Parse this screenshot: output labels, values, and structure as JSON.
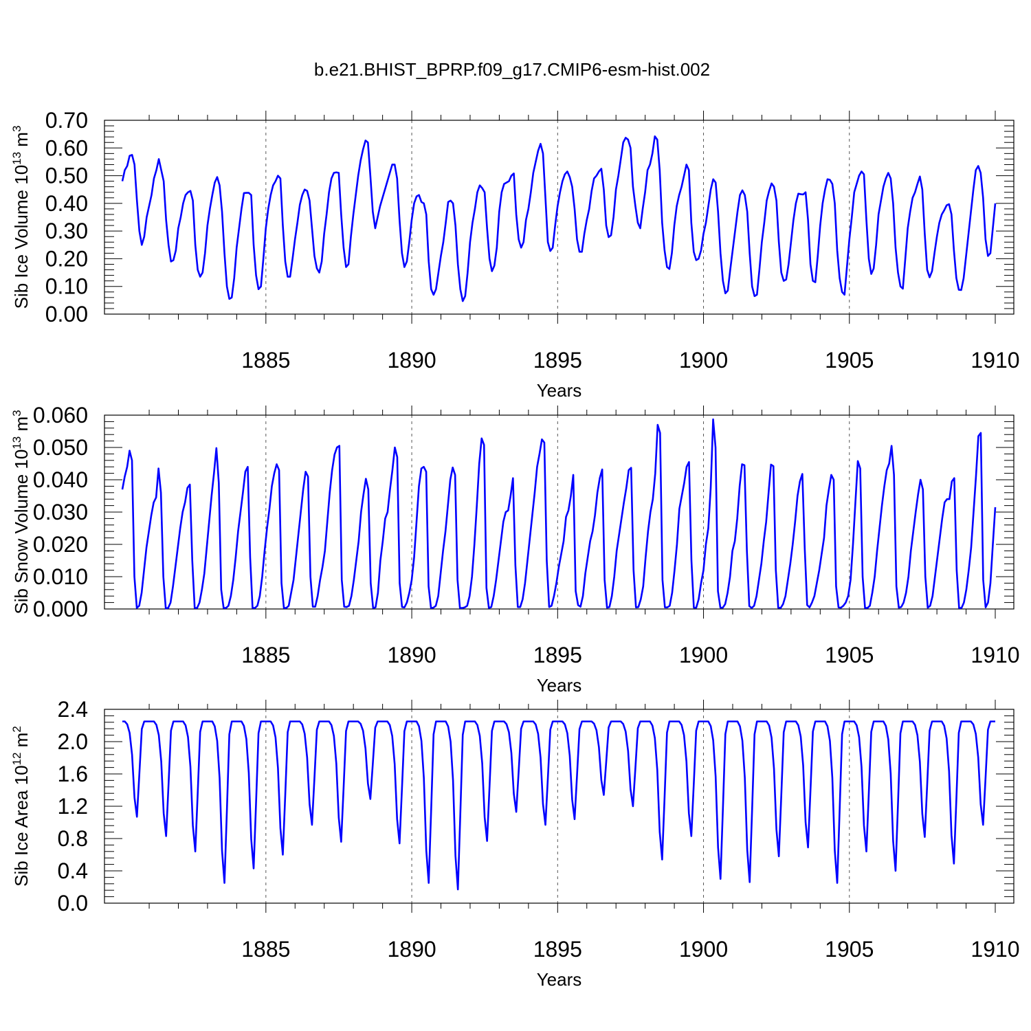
{
  "title": "b.e21.BHIST_BPRP.f09_g17.CMIP6-esm-hist.002",
  "colors": {
    "series": "#0000ff",
    "axis": "#000000",
    "grid": "#555555"
  },
  "chart_data": [
    {
      "type": "line",
      "id": "ice_volume",
      "ylabel_main": "Sib Ice Volume 10",
      "ylabel_exp": "13",
      "ylabel_unit": " m",
      "ylabel_unit_exp": "3",
      "xlabel": "Years",
      "xlim": [
        1880.08,
        1910.0
      ],
      "ylim": [
        0.0,
        0.7
      ],
      "xticks": [
        "1885",
        "1890",
        "1895",
        "1900",
        "1905",
        "1910"
      ],
      "yticks": [
        "0.00",
        "0.10",
        "0.20",
        "0.30",
        "0.40",
        "0.50",
        "0.60",
        "0.70"
      ],
      "grid_x": [
        1885,
        1890,
        1895,
        1900,
        1905
      ],
      "monthly_values": [
        0.48,
        0.52,
        0.535,
        0.572,
        0.575,
        0.54,
        0.41,
        0.3,
        0.25,
        0.28,
        0.35,
        0.39,
        0.43,
        0.49,
        0.52,
        0.56,
        0.52,
        0.48,
        0.34,
        0.25,
        0.19,
        0.195,
        0.23,
        0.31,
        0.35,
        0.4,
        0.43,
        0.44,
        0.445,
        0.41,
        0.25,
        0.16,
        0.135,
        0.15,
        0.22,
        0.32,
        0.38,
        0.43,
        0.475,
        0.495,
        0.465,
        0.37,
        0.22,
        0.1,
        0.055,
        0.06,
        0.13,
        0.24,
        0.31,
        0.38,
        0.437,
        0.438,
        0.438,
        0.43,
        0.25,
        0.14,
        0.09,
        0.1,
        0.2,
        0.31,
        0.38,
        0.43,
        0.465,
        0.48,
        0.5,
        0.49,
        0.32,
        0.19,
        0.135,
        0.135,
        0.2,
        0.27,
        0.33,
        0.395,
        0.43,
        0.45,
        0.445,
        0.41,
        0.31,
        0.21,
        0.165,
        0.15,
        0.19,
        0.29,
        0.36,
        0.44,
        0.49,
        0.51,
        0.512,
        0.51,
        0.36,
        0.24,
        0.17,
        0.18,
        0.28,
        0.36,
        0.43,
        0.5,
        0.555,
        0.595,
        0.627,
        0.62,
        0.5,
        0.37,
        0.31,
        0.35,
        0.39,
        0.42,
        0.45,
        0.48,
        0.51,
        0.54,
        0.54,
        0.49,
        0.34,
        0.22,
        0.17,
        0.19,
        0.26,
        0.34,
        0.4,
        0.425,
        0.43,
        0.405,
        0.4,
        0.36,
        0.19,
        0.09,
        0.07,
        0.09,
        0.15,
        0.21,
        0.26,
        0.33,
        0.405,
        0.41,
        0.4,
        0.32,
        0.18,
        0.09,
        0.047,
        0.065,
        0.15,
        0.26,
        0.33,
        0.38,
        0.44,
        0.465,
        0.455,
        0.44,
        0.31,
        0.2,
        0.155,
        0.175,
        0.24,
        0.37,
        0.44,
        0.47,
        0.475,
        0.48,
        0.5,
        0.508,
        0.36,
        0.27,
        0.24,
        0.26,
        0.34,
        0.38,
        0.44,
        0.51,
        0.55,
        0.59,
        0.615,
        0.58,
        0.42,
        0.26,
        0.228,
        0.24,
        0.32,
        0.39,
        0.44,
        0.48,
        0.505,
        0.515,
        0.495,
        0.46,
        0.38,
        0.27,
        0.225,
        0.225,
        0.29,
        0.34,
        0.38,
        0.445,
        0.49,
        0.5,
        0.515,
        0.525,
        0.45,
        0.32,
        0.278,
        0.285,
        0.35,
        0.45,
        0.5,
        0.56,
        0.62,
        0.637,
        0.63,
        0.6,
        0.46,
        0.39,
        0.33,
        0.31,
        0.38,
        0.44,
        0.52,
        0.54,
        0.58,
        0.642,
        0.63,
        0.52,
        0.33,
        0.23,
        0.17,
        0.163,
        0.22,
        0.32,
        0.39,
        0.43,
        0.46,
        0.5,
        0.54,
        0.52,
        0.33,
        0.225,
        0.195,
        0.2,
        0.23,
        0.29,
        0.33,
        0.39,
        0.45,
        0.487,
        0.475,
        0.37,
        0.22,
        0.12,
        0.075,
        0.085,
        0.16,
        0.23,
        0.3,
        0.37,
        0.43,
        0.447,
        0.43,
        0.37,
        0.22,
        0.1,
        0.065,
        0.07,
        0.16,
        0.26,
        0.33,
        0.41,
        0.445,
        0.472,
        0.46,
        0.41,
        0.26,
        0.15,
        0.12,
        0.125,
        0.18,
        0.26,
        0.34,
        0.4,
        0.435,
        0.433,
        0.432,
        0.44,
        0.34,
        0.18,
        0.12,
        0.115,
        0.21,
        0.32,
        0.4,
        0.45,
        0.487,
        0.485,
        0.47,
        0.4,
        0.23,
        0.13,
        0.08,
        0.07,
        0.17,
        0.27,
        0.35,
        0.44,
        0.47,
        0.5,
        0.515,
        0.505,
        0.34,
        0.2,
        0.145,
        0.165,
        0.25,
        0.36,
        0.41,
        0.46,
        0.49,
        0.51,
        0.49,
        0.4,
        0.24,
        0.15,
        0.1,
        0.092,
        0.2,
        0.31,
        0.37,
        0.42,
        0.44,
        0.47,
        0.497,
        0.45,
        0.29,
        0.16,
        0.133,
        0.155,
        0.22,
        0.28,
        0.33,
        0.36,
        0.375,
        0.393,
        0.397,
        0.36,
        0.23,
        0.13,
        0.088,
        0.087,
        0.13,
        0.21,
        0.29,
        0.37,
        0.45,
        0.52,
        0.535,
        0.51,
        0.42,
        0.27,
        0.21,
        0.22,
        0.31,
        0.4
      ]
    },
    {
      "type": "line",
      "id": "snow_volume",
      "ylabel_main": "Sib Snow Volume 10",
      "ylabel_exp": "13",
      "ylabel_unit": " m",
      "ylabel_unit_exp": "3",
      "xlabel": "Years",
      "xlim": [
        1880.08,
        1910.0
      ],
      "ylim": [
        0.0,
        0.06
      ],
      "xticks": [
        "1885",
        "1890",
        "1895",
        "1900",
        "1905",
        "1910"
      ],
      "yticks": [
        "0.000",
        "0.010",
        "0.020",
        "0.030",
        "0.040",
        "0.050",
        "0.060"
      ],
      "grid_x": [
        1885,
        1890,
        1895,
        1900,
        1905
      ],
      "monthly_values": [
        0.037,
        0.041,
        0.044,
        0.049,
        0.046,
        0.01,
        0.0003,
        0.001,
        0.005,
        0.012,
        0.019,
        0.024,
        0.029,
        0.033,
        0.0345,
        0.0435,
        0.036,
        0.01,
        0.0002,
        0.0003,
        0.002,
        0.007,
        0.013,
        0.019,
        0.025,
        0.03,
        0.033,
        0.0375,
        0.0385,
        0.015,
        0.0003,
        0.0003,
        0.002,
        0.006,
        0.011,
        0.019,
        0.027,
        0.035,
        0.042,
        0.0498,
        0.039,
        0.006,
        0.0003,
        0.0003,
        0.001,
        0.004,
        0.009,
        0.016,
        0.024,
        0.03,
        0.036,
        0.0425,
        0.044,
        0.016,
        0.0003,
        0.0003,
        0.001,
        0.004,
        0.01,
        0.018,
        0.025,
        0.031,
        0.038,
        0.042,
        0.0448,
        0.043,
        0.008,
        0.0003,
        0.0003,
        0.001,
        0.005,
        0.009,
        0.016,
        0.023,
        0.03,
        0.037,
        0.0425,
        0.041,
        0.01,
        0.0007,
        0.0007,
        0.004,
        0.009,
        0.013,
        0.018,
        0.027,
        0.036,
        0.043,
        0.0478,
        0.05,
        0.0505,
        0.009,
        0.0007,
        0.0006,
        0.001,
        0.004,
        0.009,
        0.015,
        0.021,
        0.03,
        0.0355,
        0.0403,
        0.037,
        0.008,
        0.0003,
        0.0005,
        0.005,
        0.015,
        0.021,
        0.028,
        0.03,
        0.037,
        0.043,
        0.05,
        0.047,
        0.008,
        0.0006,
        0.0005,
        0.002,
        0.005,
        0.009,
        0.016,
        0.027,
        0.038,
        0.0435,
        0.044,
        0.0425,
        0.007,
        0.0003,
        0.0004,
        0.001,
        0.004,
        0.011,
        0.018,
        0.024,
        0.032,
        0.04,
        0.0438,
        0.0415,
        0.009,
        0.0003,
        0.0003,
        0.0005,
        0.001,
        0.004,
        0.01,
        0.02,
        0.032,
        0.045,
        0.0528,
        0.0508,
        0.0065,
        0.0003,
        0.0006,
        0.004,
        0.009,
        0.015,
        0.021,
        0.027,
        0.03,
        0.0305,
        0.035,
        0.0405,
        0.0135,
        0.0006,
        0.0006,
        0.003,
        0.008,
        0.015,
        0.022,
        0.029,
        0.036,
        0.044,
        0.048,
        0.0525,
        0.0515,
        0.015,
        0.0006,
        0.001,
        0.004,
        0.008,
        0.013,
        0.017,
        0.021,
        0.0285,
        0.0305,
        0.035,
        0.0415,
        0.0055,
        0.0012,
        0.0007,
        0.004,
        0.011,
        0.016,
        0.021,
        0.024,
        0.029,
        0.036,
        0.0405,
        0.0432,
        0.009,
        0.0004,
        0.0006,
        0.004,
        0.01,
        0.018,
        0.023,
        0.028,
        0.033,
        0.0375,
        0.043,
        0.0437,
        0.012,
        0.0005,
        0.0006,
        0.003,
        0.007,
        0.016,
        0.024,
        0.03,
        0.034,
        0.042,
        0.057,
        0.0545,
        0.009,
        0.0005,
        0.0005,
        0.001,
        0.005,
        0.012,
        0.02,
        0.031,
        0.035,
        0.039,
        0.044,
        0.0455,
        0.015,
        0.0004,
        0.0004,
        0.003,
        0.008,
        0.012,
        0.02,
        0.025,
        0.0375,
        0.0587,
        0.05,
        0.0055,
        0.0004,
        0.0004,
        0.0015,
        0.005,
        0.01,
        0.018,
        0.021,
        0.028,
        0.038,
        0.0448,
        0.0445,
        0.018,
        0.0009,
        0.0003,
        0.001,
        0.004,
        0.009,
        0.014,
        0.021,
        0.027,
        0.036,
        0.0447,
        0.0442,
        0.012,
        0.0004,
        0.0003,
        0.0015,
        0.004,
        0.009,
        0.014,
        0.02,
        0.027,
        0.035,
        0.0395,
        0.0418,
        0.0185,
        0.0012,
        0.0005,
        0.002,
        0.004,
        0.008,
        0.012,
        0.017,
        0.022,
        0.032,
        0.037,
        0.0415,
        0.04,
        0.007,
        0.0005,
        0.0004,
        0.001,
        0.002,
        0.004,
        0.009,
        0.02,
        0.033,
        0.0458,
        0.0435,
        0.01,
        0.0003,
        0.0003,
        0.001,
        0.005,
        0.01,
        0.018,
        0.025,
        0.032,
        0.038,
        0.043,
        0.045,
        0.0505,
        0.0415,
        0.007,
        0.0004,
        0.0006,
        0.002,
        0.005,
        0.01,
        0.018,
        0.024,
        0.03,
        0.0355,
        0.04,
        0.037,
        0.01,
        0.0004,
        0.001,
        0.004,
        0.01,
        0.016,
        0.022,
        0.028,
        0.033,
        0.034,
        0.034,
        0.0395,
        0.0405,
        0.012,
        0.0003,
        0.0003,
        0.002,
        0.006,
        0.012,
        0.019,
        0.03,
        0.041,
        0.0535,
        0.0545,
        0.009,
        0.0005,
        0.002,
        0.008,
        0.02,
        0.0315
      ]
    },
    {
      "type": "line",
      "id": "ice_area",
      "ylabel_main": "Sib Ice Area 10",
      "ylabel_exp": "12",
      "ylabel_unit": " m",
      "ylabel_unit_exp": "2",
      "xlabel": "Years",
      "xlim": [
        1880.08,
        1910.0
      ],
      "ylim": [
        0.0,
        2.4
      ],
      "xticks": [
        "1885",
        "1890",
        "1895",
        "1900",
        "1905",
        "1910"
      ],
      "yticks": [
        "0.0",
        "0.4",
        "0.8",
        "1.2",
        "1.6",
        "2.0",
        "2.4"
      ],
      "grid_x": [
        1885,
        1890,
        1895,
        1900,
        1905
      ],
      "yearly_minima": [
        1.07,
        0.83,
        0.64,
        0.25,
        0.43,
        0.6,
        0.97,
        0.76,
        1.29,
        0.74,
        0.25,
        0.17,
        0.77,
        1.13,
        0.97,
        1.04,
        1.34,
        1.2,
        0.54,
        0.83,
        0.3,
        0.26,
        0.58,
        0.69,
        0.25,
        0.64,
        0.4,
        0.82,
        0.49,
        0.97
      ],
      "yearly_max": 2.25
    }
  ]
}
